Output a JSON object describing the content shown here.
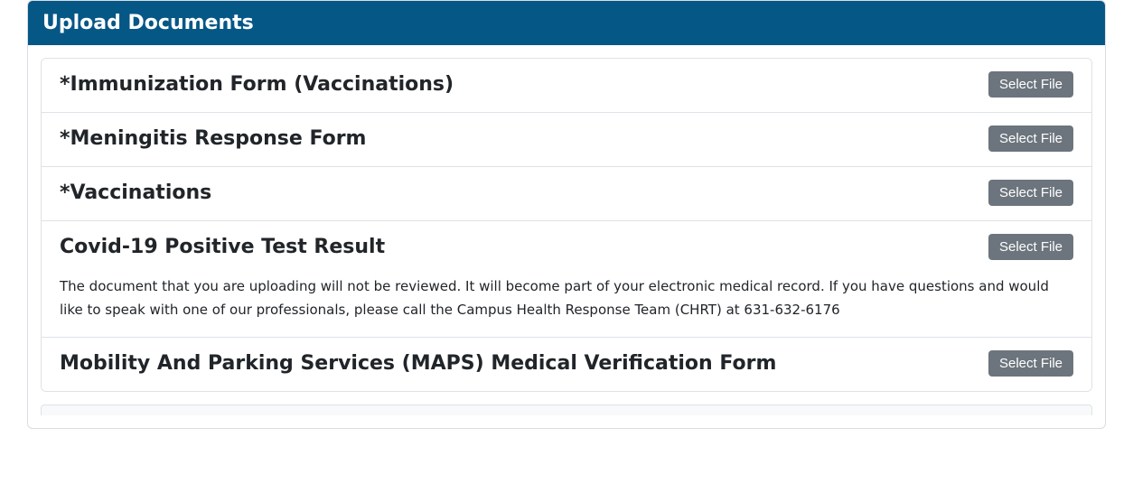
{
  "header": {
    "title": "Upload Documents"
  },
  "button_label": "Select File",
  "documents": {
    "items": [
      {
        "title": "*Immunization Form (Vaccinations)",
        "description": ""
      },
      {
        "title": "*Meningitis Response Form",
        "description": ""
      },
      {
        "title": "*Vaccinations",
        "description": ""
      },
      {
        "title": "Covid-19 Positive Test Result",
        "description": "The document that you are uploading will not be reviewed. It will become part of your electronic medical record. If you have questions and would like to speak with one of our professionals, please call the Campus Health Response Team (CHRT) at 631-632-6176"
      },
      {
        "title": "Mobility And Parking Services (MAPS) Medical Verification Form",
        "description": ""
      }
    ]
  },
  "colors": {
    "header_bg": "#055786",
    "button_bg": "#6c757d",
    "border": "#dee2e6",
    "text": "#212529"
  }
}
